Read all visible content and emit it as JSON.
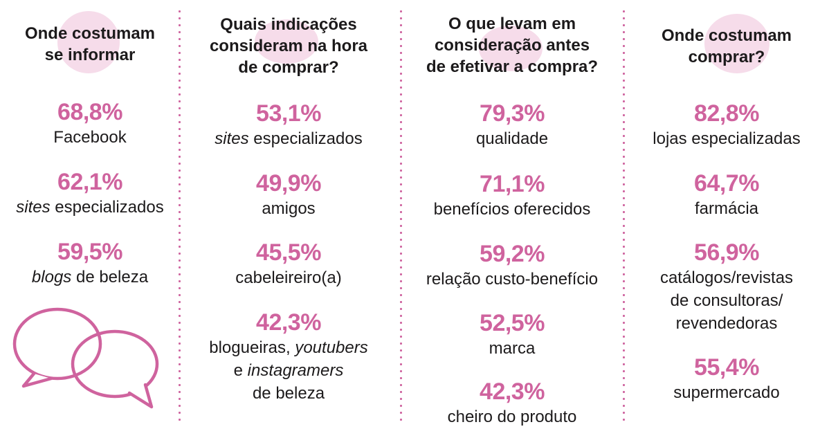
{
  "palette": {
    "accent_pink": "#cf639e",
    "light_circle_pink": "#f6dcea",
    "text_black": "#1c1a1b",
    "background": "#ffffff"
  },
  "columns": [
    {
      "header": "Onde costumam\nse informar",
      "stats": [
        {
          "value": "68,8%",
          "label": [
            {
              "t": "Facebook"
            }
          ]
        },
        {
          "value": "62,1%",
          "label": [
            {
              "t": "sites",
              "i": true
            },
            {
              "t": " especializados"
            }
          ]
        },
        {
          "value": "59,5%",
          "label": [
            {
              "t": "blogs",
              "i": true
            },
            {
              "t": " de beleza"
            }
          ]
        }
      ],
      "icon": "speech-bubbles"
    },
    {
      "header": "Quais indicações\nconsideram na hora\nde comprar?",
      "stats": [
        {
          "value": "53,1%",
          "label": [
            {
              "t": "sites",
              "i": true
            },
            {
              "t": " especializados"
            }
          ]
        },
        {
          "value": "49,9%",
          "label": [
            {
              "t": "amigos"
            }
          ]
        },
        {
          "value": "45,5%",
          "label": [
            {
              "t": "cabeleireiro(a)"
            }
          ]
        },
        {
          "value": "42,3%",
          "label": [
            {
              "t": "blogueiras, "
            },
            {
              "t": "youtubers",
              "i": true
            },
            {
              "t": "\ne "
            },
            {
              "t": "instagramers",
              "i": true
            },
            {
              "t": "\nde beleza"
            }
          ]
        }
      ]
    },
    {
      "header": "O que levam em\nconsideração antes\nde efetivar a compra?",
      "stats": [
        {
          "value": "79,3%",
          "label": [
            {
              "t": "qualidade"
            }
          ]
        },
        {
          "value": "71,1%",
          "label": [
            {
              "t": "benefícios oferecidos"
            }
          ]
        },
        {
          "value": "59,2%",
          "label": [
            {
              "t": "relação custo-benefício"
            }
          ]
        },
        {
          "value": "52,5%",
          "label": [
            {
              "t": "marca"
            }
          ]
        },
        {
          "value": "42,3%",
          "label": [
            {
              "t": "cheiro do produto"
            }
          ]
        }
      ]
    },
    {
      "header": "Onde costumam\ncomprar?",
      "stats": [
        {
          "value": "82,8%",
          "label": [
            {
              "t": "lojas especializadas"
            }
          ]
        },
        {
          "value": "64,7%",
          "label": [
            {
              "t": "farmácia"
            }
          ]
        },
        {
          "value": "56,9%",
          "label": [
            {
              "t": "catálogos/revistas\nde consultoras/\nrevendedoras"
            }
          ]
        },
        {
          "value": "55,4%",
          "label": [
            {
              "t": "supermercado"
            }
          ]
        }
      ]
    }
  ],
  "chart_data": [
    {
      "type": "table",
      "title": "Onde costumam se informar",
      "categories": [
        "Facebook",
        "sites especializados",
        "blogs de beleza"
      ],
      "values": [
        68.8,
        62.1,
        59.5
      ],
      "unit": "%"
    },
    {
      "type": "table",
      "title": "Quais indicações consideram na hora de comprar?",
      "categories": [
        "sites especializados",
        "amigos",
        "cabeleireiro(a)",
        "blogueiras, youtubers e instagramers de beleza"
      ],
      "values": [
        53.1,
        49.9,
        45.5,
        42.3
      ],
      "unit": "%"
    },
    {
      "type": "table",
      "title": "O que levam em consideração antes de efetivar a compra?",
      "categories": [
        "qualidade",
        "benefícios oferecidos",
        "relação custo-benefício",
        "marca",
        "cheiro do produto"
      ],
      "values": [
        79.3,
        71.1,
        59.2,
        52.5,
        42.3
      ],
      "unit": "%"
    },
    {
      "type": "table",
      "title": "Onde costumam comprar?",
      "categories": [
        "lojas especializadas",
        "farmácia",
        "catálogos/revistas de consultoras/revendedoras",
        "supermercado"
      ],
      "values": [
        82.8,
        64.7,
        56.9,
        55.4
      ],
      "unit": "%"
    }
  ]
}
